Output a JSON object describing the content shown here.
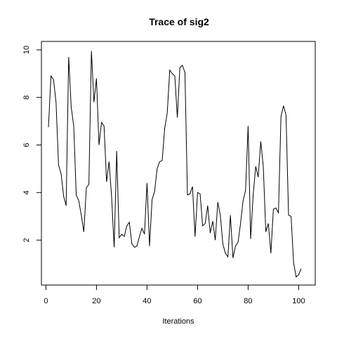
{
  "chart_data": {
    "type": "line",
    "title": "Trace of sig2",
    "xlabel": "Iterations",
    "ylabel": "",
    "xlim": [
      1,
      101
    ],
    "ylim": [
      0.45,
      9.95
    ],
    "x_ticks": [
      0,
      20,
      40,
      60,
      80,
      100
    ],
    "y_ticks": [
      2,
      4,
      6,
      8,
      10
    ],
    "grid": false,
    "legend": "none",
    "line_color": "#000000",
    "series": [
      {
        "x": [
          1,
          2,
          3,
          4,
          5,
          6,
          7,
          8,
          9,
          10,
          11,
          12,
          13,
          14,
          15,
          16,
          17,
          18,
          19,
          20,
          21,
          22,
          23,
          24,
          25,
          26,
          27,
          28,
          29,
          30,
          31,
          32,
          33,
          34,
          35,
          36,
          37,
          38,
          39,
          40,
          41,
          42,
          43,
          44,
          45,
          46,
          47,
          48,
          49,
          50,
          51,
          52,
          53,
          54,
          55,
          56,
          57,
          58,
          59,
          60,
          61,
          62,
          63,
          64,
          65,
          66,
          67,
          68,
          69,
          70,
          71,
          72,
          73,
          74,
          75,
          76,
          77,
          78,
          79,
          80,
          81,
          82,
          83,
          84,
          85,
          86,
          87,
          88,
          89,
          90,
          91,
          92,
          93,
          94,
          95,
          96,
          97,
          98,
          99,
          100,
          101
        ],
        "values": [
          6.75,
          8.9,
          8.75,
          7.8,
          5.15,
          4.8,
          3.85,
          3.45,
          9.7,
          7.6,
          6.8,
          3.9,
          3.65,
          3.05,
          2.35,
          4.2,
          4.35,
          9.95,
          7.8,
          8.8,
          6.0,
          6.95,
          6.8,
          4.45,
          5.3,
          3.8,
          1.7,
          5.75,
          2.1,
          2.25,
          2.15,
          2.6,
          2.75,
          1.85,
          1.7,
          1.75,
          2.15,
          2.5,
          2.25,
          4.4,
          1.75,
          3.7,
          4.05,
          5.0,
          5.3,
          5.35,
          6.7,
          7.35,
          9.15,
          9.0,
          8.9,
          7.15,
          9.25,
          9.35,
          9.05,
          3.9,
          3.95,
          4.25,
          2.15,
          4.0,
          3.95,
          2.6,
          2.7,
          3.45,
          2.3,
          2.8,
          2.0,
          3.6,
          3.05,
          1.85,
          1.45,
          1.3,
          3.05,
          1.25,
          1.75,
          1.9,
          2.7,
          3.65,
          4.1,
          6.8,
          2.05,
          3.9,
          5.1,
          4.65,
          6.15,
          5.1,
          2.35,
          2.7,
          1.45,
          3.3,
          3.35,
          3.15,
          7.2,
          7.65,
          7.25,
          3.05,
          3.0,
          1.05,
          0.45,
          0.55,
          0.8
        ]
      }
    ]
  }
}
